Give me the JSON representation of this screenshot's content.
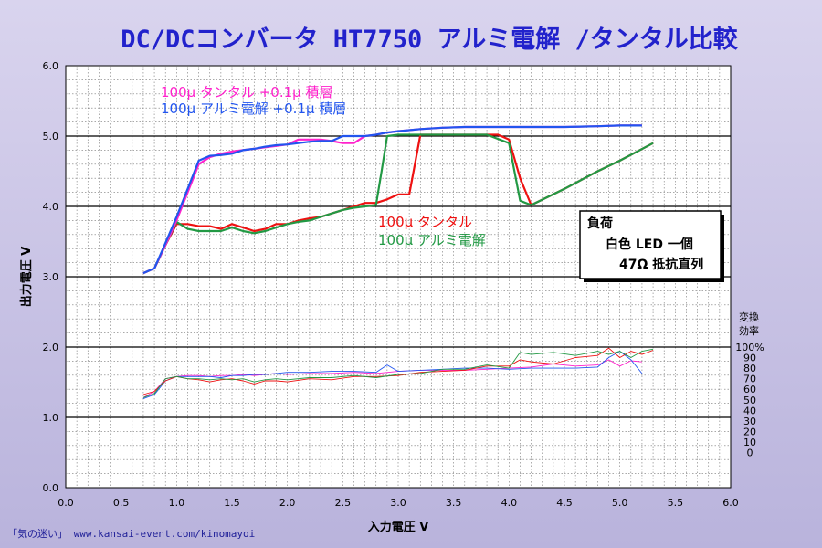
{
  "chart_data": {
    "type": "line",
    "title": "DC/DCコンバータ HT7750 アルミ電解 /タンタル比較",
    "xlabel": "入力電圧 V",
    "ylabel": "出力電圧 V",
    "xlim": [
      0,
      6
    ],
    "ylim": [
      0,
      6
    ],
    "x_ticks": [
      "0.0",
      "0.5",
      "1.0",
      "1.5",
      "2.0",
      "2.5",
      "3.0",
      "3.5",
      "4.0",
      "4.5",
      "5.0",
      "5.5",
      "6.0"
    ],
    "y_ticks": [
      "0.0",
      "1.0",
      "2.0",
      "3.0",
      "4.0",
      "5.0",
      "6.0"
    ],
    "y2_label": [
      "変換",
      "効率"
    ],
    "y2_ticks": [
      "100%",
      "90",
      "80",
      "70",
      "60",
      "50",
      "40",
      "30",
      "20",
      "10",
      "0"
    ],
    "grid": true,
    "series": [
      {
        "name": "100μ タンタル+0.1μ 積層",
        "color": "#ff22cc",
        "x": [
          0.7,
          0.8,
          0.9,
          1.0,
          1.1,
          1.2,
          1.3,
          1.4,
          1.5,
          1.6,
          1.7,
          1.8,
          1.9,
          2.0,
          2.1,
          2.2,
          2.3,
          2.4,
          2.5,
          2.6,
          2.7,
          2.8,
          2.9,
          3.0,
          3.2,
          3.4,
          3.6,
          3.8,
          4.0,
          4.2,
          4.5,
          4.8,
          5.0,
          5.2
        ],
        "y": [
          3.05,
          3.12,
          3.45,
          3.8,
          4.2,
          4.6,
          4.7,
          4.75,
          4.78,
          4.8,
          4.82,
          4.84,
          4.86,
          4.88,
          4.95,
          4.95,
          4.95,
          4.93,
          4.9,
          4.9,
          5.0,
          5.02,
          5.05,
          5.07,
          5.1,
          5.12,
          5.13,
          5.13,
          5.13,
          5.13,
          5.13,
          5.14,
          5.15,
          5.15
        ]
      },
      {
        "name": "100μ アルミ電解 +0.1μ 積層",
        "color": "#2255ee",
        "x": [
          0.7,
          0.8,
          0.9,
          1.0,
          1.1,
          1.2,
          1.3,
          1.4,
          1.5,
          1.6,
          1.7,
          1.8,
          1.9,
          2.0,
          2.1,
          2.2,
          2.3,
          2.4,
          2.5,
          2.6,
          2.7,
          2.8,
          2.9,
          3.0,
          3.2,
          3.4,
          3.6,
          3.8,
          4.0,
          4.2,
          4.5,
          4.8,
          5.0,
          5.2
        ],
        "y": [
          3.05,
          3.12,
          3.48,
          3.85,
          4.25,
          4.65,
          4.72,
          4.73,
          4.75,
          4.8,
          4.82,
          4.85,
          4.87,
          4.88,
          4.9,
          4.92,
          4.93,
          4.93,
          5.0,
          5.0,
          5.0,
          5.02,
          5.05,
          5.07,
          5.1,
          5.12,
          5.13,
          5.13,
          5.13,
          5.13,
          5.13,
          5.14,
          5.15,
          5.15
        ]
      },
      {
        "name": "100μ タンタル",
        "color": "#ee1111",
        "x": [
          0.7,
          0.8,
          0.9,
          1.0,
          1.1,
          1.2,
          1.3,
          1.4,
          1.5,
          1.6,
          1.7,
          1.8,
          1.9,
          2.0,
          2.1,
          2.2,
          2.3,
          2.4,
          2.5,
          2.6,
          2.7,
          2.8,
          2.9,
          3.0,
          3.1,
          3.2,
          3.3,
          3.4,
          3.5,
          3.6,
          3.7,
          3.8,
          3.9,
          4.0,
          4.1,
          4.2,
          4.5,
          4.8,
          5.0,
          5.3
        ],
        "y": [
          3.05,
          3.12,
          3.45,
          3.75,
          3.75,
          3.72,
          3.72,
          3.68,
          3.75,
          3.7,
          3.65,
          3.68,
          3.75,
          3.75,
          3.8,
          3.83,
          3.85,
          3.9,
          3.95,
          4.0,
          4.05,
          4.05,
          4.1,
          4.17,
          4.17,
          5.02,
          5.02,
          5.02,
          5.02,
          5.02,
          5.02,
          5.02,
          5.02,
          4.95,
          4.4,
          4.02,
          4.25,
          4.5,
          4.65,
          4.9
        ]
      },
      {
        "name": "100μ アルミ電解",
        "color": "#229944",
        "x": [
          0.7,
          0.8,
          0.9,
          1.0,
          1.1,
          1.2,
          1.3,
          1.4,
          1.5,
          1.6,
          1.7,
          1.8,
          1.9,
          2.0,
          2.1,
          2.2,
          2.3,
          2.4,
          2.5,
          2.6,
          2.7,
          2.8,
          2.85,
          2.9,
          3.0,
          3.2,
          3.4,
          3.6,
          3.8,
          4.0,
          4.1,
          4.2,
          4.5,
          4.8,
          5.0,
          5.3
        ],
        "y": [
          3.05,
          3.12,
          3.45,
          3.78,
          3.68,
          3.65,
          3.65,
          3.65,
          3.7,
          3.65,
          3.62,
          3.65,
          3.7,
          3.75,
          3.78,
          3.8,
          3.85,
          3.9,
          3.95,
          3.98,
          4.0,
          4.02,
          4.5,
          5.0,
          5.02,
          5.02,
          5.02,
          5.02,
          5.02,
          4.9,
          4.08,
          4.02,
          4.25,
          4.5,
          4.65,
          4.9
        ]
      }
    ],
    "efficiency_series": [
      {
        "name": "100μ タンタル+0.1μ 積層",
        "color": "#ff22cc",
        "x": [
          0.7,
          0.8,
          0.9,
          1.0,
          1.1,
          1.2,
          1.3,
          1.4,
          1.5,
          1.6,
          1.7,
          1.8,
          1.9,
          2.0,
          2.2,
          2.4,
          2.6,
          2.8,
          3.0,
          3.2,
          3.4,
          3.6,
          3.8,
          4.0,
          4.2,
          4.4,
          4.6,
          4.8,
          4.9,
          5.0,
          5.1,
          5.2
        ],
        "y": [
          52,
          58,
          70,
          72,
          73,
          73,
          72,
          73,
          73,
          74,
          73,
          74,
          75,
          74,
          75,
          75,
          76,
          75,
          77,
          78,
          78,
          78,
          79,
          80,
          81,
          84,
          82,
          83,
          88,
          82,
          87,
          86
        ]
      },
      {
        "name": "100μ アルミ電解 +0.1μ 積層",
        "color": "#2255ee",
        "x": [
          0.7,
          0.8,
          0.9,
          1.0,
          1.1,
          1.2,
          1.3,
          1.4,
          1.5,
          1.6,
          1.7,
          1.8,
          1.9,
          2.0,
          2.2,
          2.4,
          2.6,
          2.8,
          2.9,
          3.0,
          3.2,
          3.4,
          3.6,
          3.8,
          4.0,
          4.2,
          4.4,
          4.6,
          4.8,
          4.9,
          5.0,
          5.1,
          5.2
        ],
        "y": [
          51,
          55,
          68,
          72,
          72,
          72,
          72,
          71,
          73,
          73,
          74,
          74,
          75,
          76,
          76,
          77,
          77,
          76,
          83,
          77,
          78,
          79,
          80,
          80,
          79,
          80,
          80,
          80,
          81,
          90,
          96,
          88,
          75
        ]
      },
      {
        "name": "100μ タンタル",
        "color": "#ee1111",
        "x": [
          0.7,
          0.8,
          0.9,
          1.0,
          1.1,
          1.2,
          1.3,
          1.4,
          1.5,
          1.6,
          1.7,
          1.8,
          1.9,
          2.0,
          2.2,
          2.4,
          2.6,
          2.8,
          3.0,
          3.2,
          3.4,
          3.6,
          3.8,
          4.0,
          4.1,
          4.2,
          4.4,
          4.6,
          4.8,
          4.9,
          5.0,
          5.1,
          5.2,
          5.3
        ],
        "y": [
          55,
          58,
          68,
          72,
          70,
          69,
          67,
          69,
          70,
          68,
          65,
          68,
          68,
          67,
          70,
          69,
          72,
          72,
          73,
          76,
          77,
          78,
          82,
          82,
          88,
          86,
          84,
          90,
          92,
          99,
          90,
          96,
          93,
          97
        ]
      },
      {
        "name": "100μ アルミ電解",
        "color": "#229944",
        "x": [
          0.7,
          0.8,
          0.9,
          1.0,
          1.1,
          1.2,
          1.3,
          1.4,
          1.5,
          1.6,
          1.7,
          1.8,
          1.9,
          2.0,
          2.2,
          2.4,
          2.6,
          2.8,
          3.0,
          3.2,
          3.4,
          3.6,
          3.8,
          4.0,
          4.1,
          4.2,
          4.4,
          4.6,
          4.8,
          4.9,
          5.0,
          5.1,
          5.2,
          5.3
        ],
        "y": [
          52,
          56,
          70,
          72,
          70,
          70,
          69,
          70,
          69,
          70,
          67,
          69,
          70,
          69,
          71,
          71,
          73,
          71,
          74,
          75,
          79,
          79,
          83,
          80,
          95,
          93,
          95,
          92,
          96,
          93,
          96,
          90,
          96,
          98
        ]
      }
    ],
    "annotations": {
      "tantalum_mlcc": "100μ タンタル +0.1μ 積層",
      "aluminium_mlcc": "100μ アルミ電解 +0.1μ 積層",
      "tantalum": "100μ タンタル",
      "aluminium": "100μ アルミ電解"
    },
    "load_box": {
      "line1": "負荷",
      "line2": "白色 LED 一個",
      "line3": "47Ω 抵抗直列"
    }
  },
  "footer": "「気の迷い」 www.kansai-event.com/kinomayoi"
}
